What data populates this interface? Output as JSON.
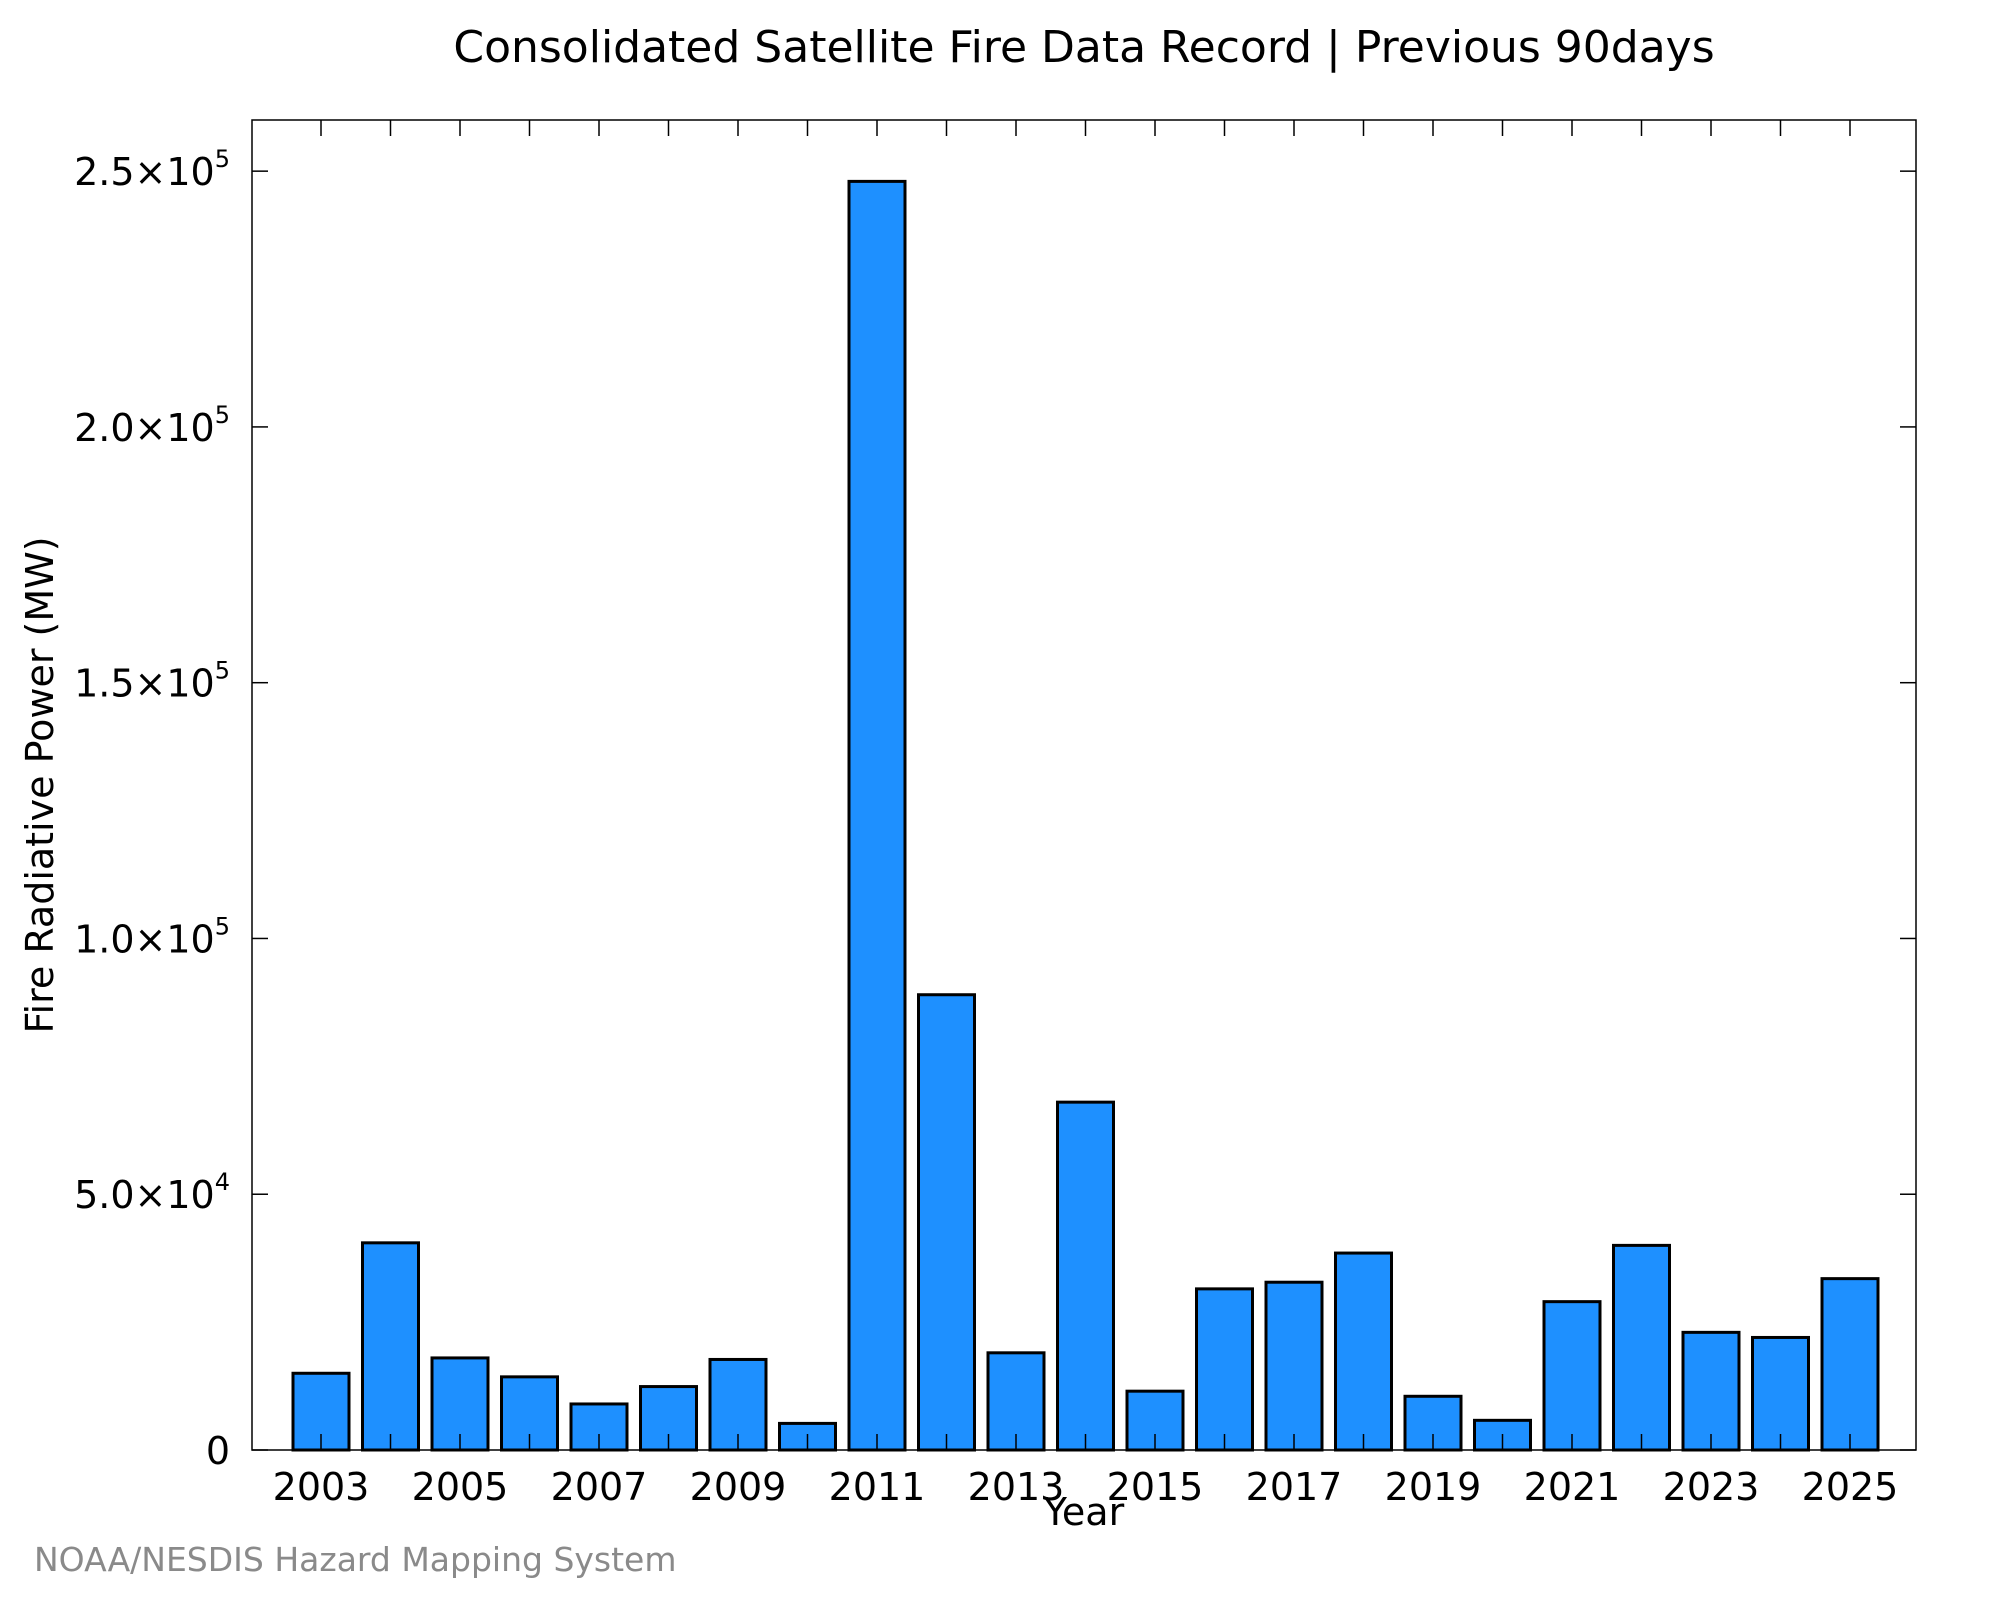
{
  "chart_data": {
    "type": "bar",
    "title": "Consolidated Satellite Fire Data Record | Previous 90days",
    "xlabel": "Year",
    "ylabel": "Fire Radiative Power (MW)",
    "categories": [
      "2003",
      "2004",
      "2005",
      "2006",
      "2007",
      "2008",
      "2009",
      "2010",
      "2011",
      "2012",
      "2013",
      "2014",
      "2015",
      "2016",
      "2017",
      "2018",
      "2019",
      "2020",
      "2021",
      "2022",
      "2023",
      "2024",
      "2025"
    ],
    "values": [
      15000,
      40500,
      18000,
      14300,
      9000,
      12400,
      17700,
      5200,
      248000,
      89000,
      19000,
      68000,
      11500,
      31500,
      32800,
      38500,
      10500,
      5800,
      29000,
      40000,
      23000,
      22000,
      33500
    ],
    "ylim": [
      0,
      260000
    ],
    "yticks": [
      {
        "value": 0,
        "mantissa": "0",
        "exponent": ""
      },
      {
        "value": 50000,
        "mantissa": "5.0×10",
        "exponent": "4"
      },
      {
        "value": 100000,
        "mantissa": "1.0×10",
        "exponent": "5"
      },
      {
        "value": 150000,
        "mantissa": "1.5×10",
        "exponent": "5"
      },
      {
        "value": 200000,
        "mantissa": "2.0×10",
        "exponent": "5"
      },
      {
        "value": 250000,
        "mantissa": "2.5×10",
        "exponent": "5"
      }
    ],
    "xtick_labels": [
      "2003",
      "2005",
      "2007",
      "2009",
      "2011",
      "2013",
      "2015",
      "2017",
      "2019",
      "2021",
      "2023",
      "2025"
    ],
    "grid": false,
    "bar_color": "#1e90ff",
    "bar_edge_color": "#000000"
  },
  "credit": "NOAA/NESDIS Hazard Mapping System"
}
